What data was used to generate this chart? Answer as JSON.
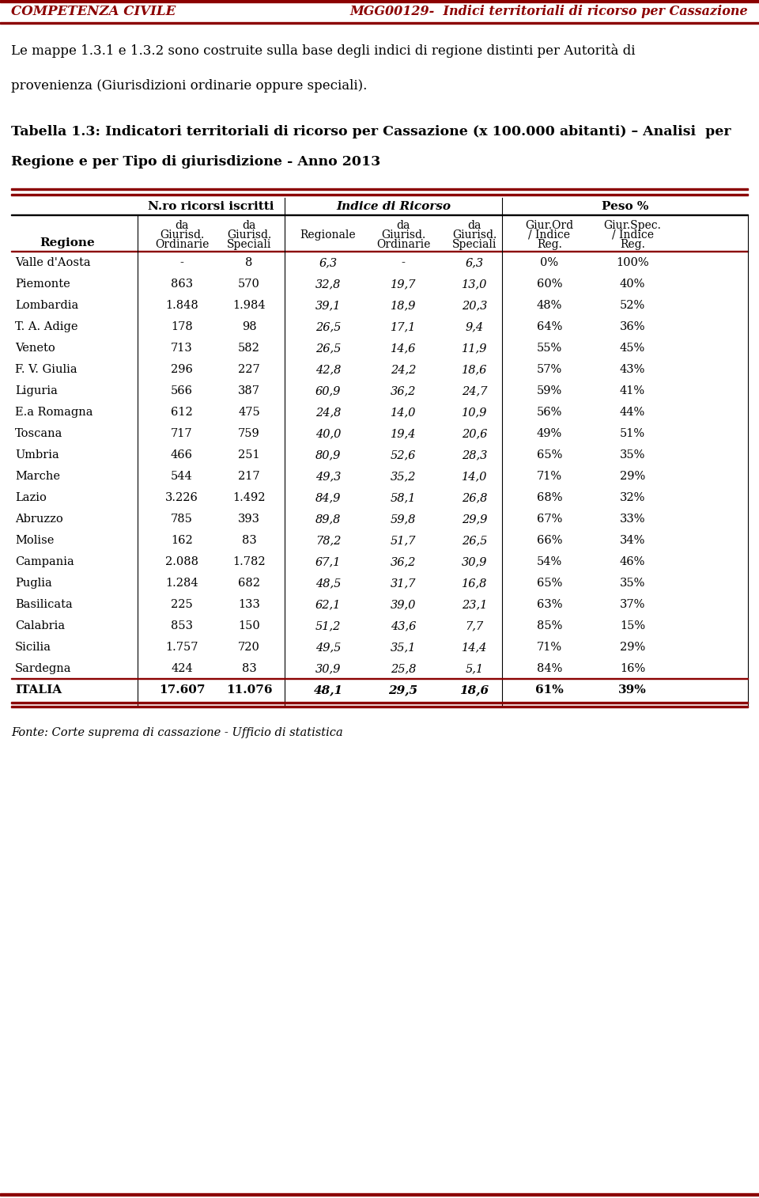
{
  "header_top_left": "COMPETENZA CIVILE",
  "header_top_right": "MGG00129-  Indici territoriali di ricorso per Cassazione",
  "intro_line1": "Le mappe 1.3.1 e 1.3.2 sono costruite sulla base degli indici di regione distinti per Autorità di",
  "intro_line2": "provenienza (Giurisdizioni ordinarie oppure speciali).",
  "table_title_line1": "Tabella 1.3: Indicatori territoriali di ricorso per Cassazione (x 100.000 abitanti) – Analisi  per",
  "table_title_line2": "Regione e per Tipo di giurisdizione - Anno 2013",
  "fonte": "Fonte: Corte suprema di cassazione - Ufficio di statistica",
  "col_group1": "N.ro ricorsi iscritti",
  "col_group2": "Indice di Ricorso",
  "col_group3": "Peso %",
  "regions": [
    "Valle d'Aosta",
    "Piemonte",
    "Lombardia",
    "T. A. Adige",
    "Veneto",
    "F. V. Giulia",
    "Liguria",
    "E.a Romagna",
    "Toscana",
    "Umbria",
    "Marche",
    "Lazio",
    "Abruzzo",
    "Molise",
    "Campania",
    "Puglia",
    "Basilicata",
    "Calabria",
    "Sicilia",
    "Sardegna"
  ],
  "data": [
    [
      "-",
      "8",
      "6,3",
      "-",
      "6,3",
      "0%",
      "100%"
    ],
    [
      "863",
      "570",
      "32,8",
      "19,7",
      "13,0",
      "60%",
      "40%"
    ],
    [
      "1.848",
      "1.984",
      "39,1",
      "18,9",
      "20,3",
      "48%",
      "52%"
    ],
    [
      "178",
      "98",
      "26,5",
      "17,1",
      "9,4",
      "64%",
      "36%"
    ],
    [
      "713",
      "582",
      "26,5",
      "14,6",
      "11,9",
      "55%",
      "45%"
    ],
    [
      "296",
      "227",
      "42,8",
      "24,2",
      "18,6",
      "57%",
      "43%"
    ],
    [
      "566",
      "387",
      "60,9",
      "36,2",
      "24,7",
      "59%",
      "41%"
    ],
    [
      "612",
      "475",
      "24,8",
      "14,0",
      "10,9",
      "56%",
      "44%"
    ],
    [
      "717",
      "759",
      "40,0",
      "19,4",
      "20,6",
      "49%",
      "51%"
    ],
    [
      "466",
      "251",
      "80,9",
      "52,6",
      "28,3",
      "65%",
      "35%"
    ],
    [
      "544",
      "217",
      "49,3",
      "35,2",
      "14,0",
      "71%",
      "29%"
    ],
    [
      "3.226",
      "1.492",
      "84,9",
      "58,1",
      "26,8",
      "68%",
      "32%"
    ],
    [
      "785",
      "393",
      "89,8",
      "59,8",
      "29,9",
      "67%",
      "33%"
    ],
    [
      "162",
      "83",
      "78,2",
      "51,7",
      "26,5",
      "66%",
      "34%"
    ],
    [
      "2.088",
      "1.782",
      "67,1",
      "36,2",
      "30,9",
      "54%",
      "46%"
    ],
    [
      "1.284",
      "682",
      "48,5",
      "31,7",
      "16,8",
      "65%",
      "35%"
    ],
    [
      "225",
      "133",
      "62,1",
      "39,0",
      "23,1",
      "63%",
      "37%"
    ],
    [
      "853",
      "150",
      "51,2",
      "43,6",
      "7,7",
      "85%",
      "15%"
    ],
    [
      "1.757",
      "720",
      "49,5",
      "35,1",
      "14,4",
      "71%",
      "29%"
    ],
    [
      "424",
      "83",
      "30,9",
      "25,8",
      "5,1",
      "84%",
      "16%"
    ]
  ],
  "italia_row": [
    "17.607",
    "11.076",
    "48,1",
    "29,5",
    "18,6",
    "61%",
    "39%"
  ],
  "italic_cols": [
    2,
    3,
    4
  ],
  "bg_color": "#ffffff",
  "header_color": "#8B0000",
  "line_color": "#8B0000"
}
